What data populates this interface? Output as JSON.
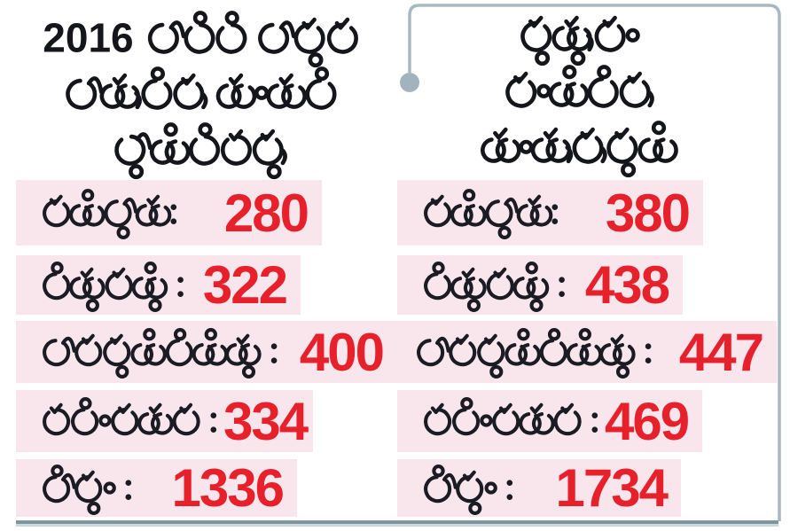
{
  "chart_data": {
    "type": "table",
    "title_left": "2016 నాటికి శాశ్వత తాగునీరు అందని హ్యాబిటేషన్లు",
    "title_right": "ప్రస్తుతం మంచినీరు అందుతున్నవి",
    "categories": [
      "జగిత్యాల",
      "పెద్దపల్లి",
      "రాజన్నసిరిసిల్ల",
      "కరీంనగర్",
      "మొత్తం"
    ],
    "series": [
      {
        "name": "2016 నాటికి శాశ్వత తాగునీరు అందని హ్యాబిటేషన్లు",
        "values": [
          280,
          322,
          400,
          334,
          1336
        ]
      },
      {
        "name": "ప్రస్తుతం మంచినీరు అందుతున్నవి",
        "values": [
          380,
          438,
          447,
          469,
          1734
        ]
      }
    ]
  },
  "left_panel": {
    "header_line1": "2016 నాటికి శాశ్వత",
    "header_line2": "తాగునీరు అందని",
    "header_line3": "హ్యాబిటేషన్లు",
    "rows": [
      {
        "label": "జగిత్యాల:",
        "value": "280"
      },
      {
        "label": "పెద్దపల్లి :",
        "value": "322"
      },
      {
        "label": "రాజన్నసిరిసిల్ల :",
        "value": "400"
      },
      {
        "label": "కరీంనగర్ :",
        "value": "334"
      },
      {
        "label": "మొత్తం :",
        "value": "1336"
      }
    ]
  },
  "right_panel": {
    "header_line1": "ప్రస్తుతం",
    "header_line2": "మంచినీరు",
    "header_line3": "అందుతున్నవి",
    "rows": [
      {
        "label": "జగిత్యాల:",
        "value": "380"
      },
      {
        "label": "పెద్దపల్లి :",
        "value": "438"
      },
      {
        "label": "రాజన్నసిరిసిల్ల :",
        "value": "447"
      },
      {
        "label": "కరీంనగర్ :",
        "value": "469"
      },
      {
        "label": "మొత్తం :",
        "value": "1734"
      }
    ]
  },
  "colors": {
    "row_bg": "#f8e6ec",
    "value_red": "#e7212b",
    "text_dark": "#1b1b24",
    "line_grey": "#a8b8c1",
    "bar_dark": "#7d96a2",
    "bar_light": "#cdd8dd"
  }
}
